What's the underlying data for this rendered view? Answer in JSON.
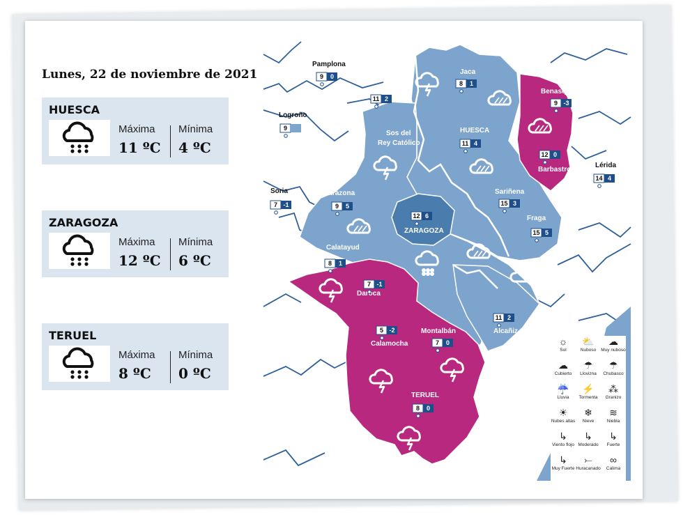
{
  "date": "Lunes, 22 de noviembre de 2021",
  "colors": {
    "blue": "#7da4cc",
    "dark_blue": "#4a7cad",
    "magenta": "#b8287f",
    "card_bg": "#dbe5ef",
    "river": "#2f5f99"
  },
  "forecasts": [
    {
      "city": "HUESCA",
      "icon": "rain-cloud-icon",
      "max_label": "Máxima",
      "min_label": "Mínima",
      "max": "11 ºC",
      "min": "4 ºC"
    },
    {
      "city": "ZARAGOZA",
      "icon": "rain-cloud-icon",
      "max_label": "Máxima",
      "min_label": "Mínima",
      "max": "12 ºC",
      "min": "6 ºC"
    },
    {
      "city": "TERUEL",
      "icon": "rain-cloud-icon",
      "max_label": "Máxima",
      "min_label": "Mínima",
      "max": "8 ºC",
      "min": "0 ºC"
    }
  ],
  "map_cities": [
    {
      "name": "Pamplona",
      "max": "9",
      "min": "0"
    },
    {
      "name": "Logroño",
      "max": "9",
      "min": ""
    },
    {
      "name": "Soria",
      "max": "7",
      "min": "-1"
    },
    {
      "name": "Lérida",
      "max": "14",
      "min": "4"
    },
    {
      "name": "Jaca",
      "max": "8",
      "min": "1"
    },
    {
      "name": "Sos del Rey Católico",
      "max": "11",
      "min": "2"
    },
    {
      "name": "HUESCA",
      "max": "11",
      "min": "4"
    },
    {
      "name": "Benasque",
      "max": "9",
      "min": "-3"
    },
    {
      "name": "Barbastro",
      "max": "12",
      "min": "0"
    },
    {
      "name": "Tarazona",
      "max": "9",
      "min": "5"
    },
    {
      "name": "ZARAGOZA",
      "max": "12",
      "min": "6"
    },
    {
      "name": "Sariñena",
      "max": "15",
      "min": "3"
    },
    {
      "name": "Fraga",
      "max": "15",
      "min": "5"
    },
    {
      "name": "Calatayud",
      "max": "8",
      "min": "1"
    },
    {
      "name": "Daroca",
      "max": "7",
      "min": "-1"
    },
    {
      "name": "Alcañiz",
      "max": "11",
      "min": "2"
    },
    {
      "name": "Calamocha",
      "max": "5",
      "min": "-2"
    },
    {
      "name": "Montalbán",
      "max": "7",
      "min": "0"
    },
    {
      "name": "TERUEL",
      "max": "8",
      "min": "0"
    }
  ],
  "legend": [
    {
      "label": "Sol",
      "icon": "sun-icon"
    },
    {
      "label": "Nuboso",
      "icon": "sun-cloud-icon"
    },
    {
      "label": "Muy nuboso",
      "icon": "cloud-icon"
    },
    {
      "label": "Cubierto",
      "icon": "overcast-icon"
    },
    {
      "label": "Llovizna",
      "icon": "drizzle-icon"
    },
    {
      "label": "Chubasco",
      "icon": "shower-icon"
    },
    {
      "label": "Lluvia",
      "icon": "rain-icon"
    },
    {
      "label": "Tormenta",
      "icon": "storm-icon"
    },
    {
      "label": "Granizo",
      "icon": "hail-icon"
    },
    {
      "label": "Nubes altas",
      "icon": "high-clouds-icon"
    },
    {
      "label": "Nieve",
      "icon": "snow-icon"
    },
    {
      "label": "Niebla",
      "icon": "fog-icon"
    },
    {
      "label": "Viento flojo",
      "icon": "wind-light-icon"
    },
    {
      "label": "Moderado",
      "icon": "wind-moderate-icon"
    },
    {
      "label": "Fuerte",
      "icon": "wind-strong-icon"
    },
    {
      "label": "Muy Fuerte",
      "icon": "wind-very-strong-icon"
    },
    {
      "label": "Huracanado",
      "icon": "hurricane-icon"
    },
    {
      "label": "Calima",
      "icon": "haze-icon"
    }
  ]
}
